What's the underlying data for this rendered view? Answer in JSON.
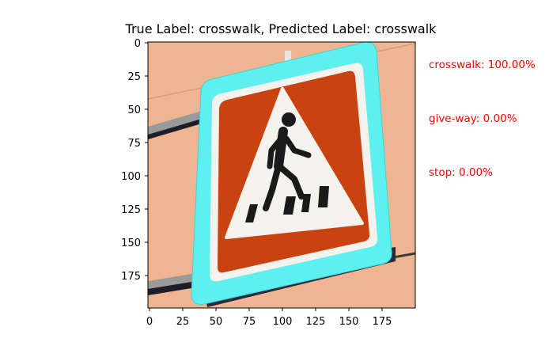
{
  "title": "True Label: crosswalk, Predicted Label: crosswalk",
  "image": {
    "description_icon": "crosswalk-sign-icon",
    "x_ticks": [
      "0",
      "25",
      "50",
      "75",
      "100",
      "125",
      "150",
      "175"
    ],
    "y_ticks": [
      "0",
      "25",
      "50",
      "75",
      "100",
      "125",
      "150",
      "175"
    ]
  },
  "predictions": [
    {
      "text": "crosswalk: 100.00%"
    },
    {
      "text": "give-way: 0.00%"
    },
    {
      "text": "stop: 0.00%"
    }
  ],
  "colors": {
    "background": "#efb592",
    "sign_frame": "#5ef0ee",
    "sign_red": "#c94310",
    "sign_white": "#f4f2ec",
    "figure": "#1a1a1a",
    "prediction_text": "#ff0000"
  }
}
